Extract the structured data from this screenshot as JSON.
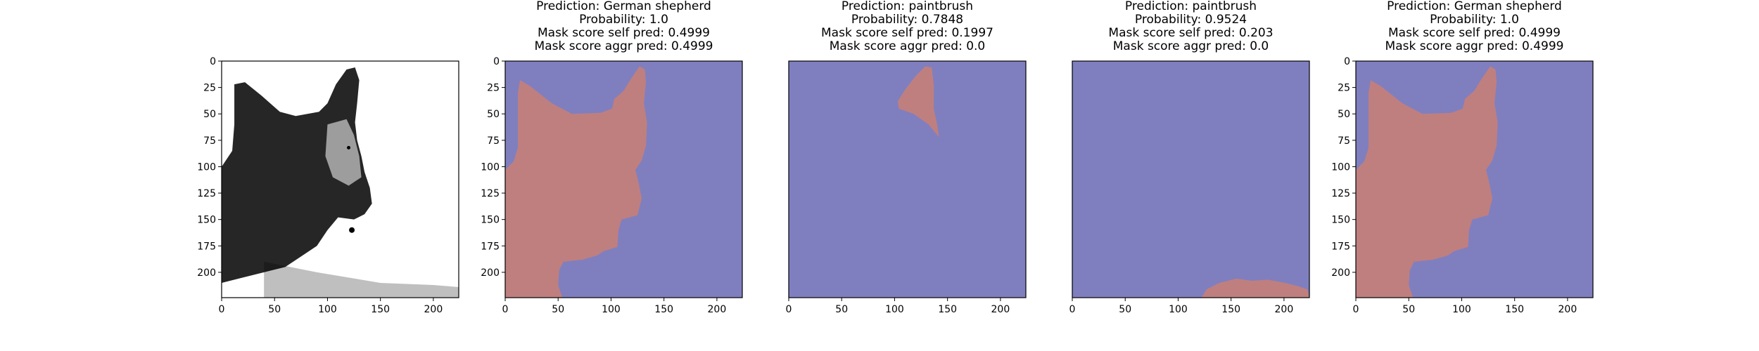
{
  "figure": {
    "axes_range": {
      "x": [
        0,
        224
      ],
      "y": [
        0,
        224
      ]
    },
    "xticks": [
      0,
      50,
      100,
      150,
      200
    ],
    "yticks": [
      0,
      25,
      50,
      75,
      100,
      125,
      150,
      175,
      200
    ],
    "colors": {
      "background": "#7f7fbf",
      "mask": "#bf7f7f",
      "spine": "#000000",
      "image_bg": "#ffffff",
      "image_fg": "#000000"
    }
  },
  "chart_data": [
    {
      "type": "image",
      "content": "grayscale-photo-dog",
      "title": [],
      "xlim": [
        0,
        224
      ],
      "ylim": [
        224,
        0
      ],
      "show_yticks": true
    },
    {
      "type": "heatmap",
      "title": [
        "Prediction: German shepherd",
        "Probability: 1.0",
        "Mask score self pred: 0.4999",
        "Mask score aggr pred: 0.4999"
      ],
      "prediction": "German shepherd",
      "probability": 1.0,
      "mask_score_self_pred": 0.4999,
      "mask_score_aggr_pred": 0.4999,
      "xlim": [
        0,
        224
      ],
      "ylim": [
        224,
        0
      ],
      "show_yticks": true,
      "mask_regions": [
        [
          [
            14,
            18
          ],
          [
            24,
            24
          ],
          [
            44,
            40
          ],
          [
            63,
            50
          ],
          [
            90,
            49
          ],
          [
            101,
            45
          ],
          [
            103,
            36
          ],
          [
            112,
            28
          ],
          [
            118,
            18
          ],
          [
            127,
            5
          ],
          [
            132,
            8
          ],
          [
            133,
            20
          ],
          [
            131,
            40
          ],
          [
            134,
            58
          ],
          [
            133,
            80
          ],
          [
            129,
            94
          ],
          [
            123,
            103
          ],
          [
            126,
            115
          ],
          [
            129,
            130
          ],
          [
            125,
            146
          ],
          [
            110,
            150
          ],
          [
            107,
            160
          ],
          [
            106,
            176
          ],
          [
            93,
            180
          ],
          [
            87,
            184
          ],
          [
            73,
            188
          ],
          [
            55,
            190
          ],
          [
            51,
            198
          ],
          [
            50,
            212
          ],
          [
            54,
            224
          ],
          [
            0,
            224
          ],
          [
            0,
            103
          ],
          [
            8,
            95
          ],
          [
            12,
            82
          ],
          [
            12,
            55
          ],
          [
            12,
            30
          ]
        ]
      ]
    },
    {
      "type": "heatmap",
      "title": [
        "Prediction: paintbrush",
        "Probability: 0.7848",
        "Mask score self pred: 0.1997",
        "Mask score aggr pred: 0.0"
      ],
      "prediction": "paintbrush",
      "probability": 0.7848,
      "mask_score_self_pred": 0.1997,
      "mask_score_aggr_pred": 0.0,
      "xlim": [
        0,
        224
      ],
      "ylim": [
        224,
        0
      ],
      "show_yticks": false,
      "mask_regions": [
        [
          [
            103,
            38
          ],
          [
            110,
            27
          ],
          [
            120,
            14
          ],
          [
            129,
            5
          ],
          [
            135,
            6
          ],
          [
            137,
            22
          ],
          [
            137,
            45
          ],
          [
            140,
            59
          ],
          [
            142,
            72
          ],
          [
            132,
            60
          ],
          [
            118,
            50
          ],
          [
            104,
            45
          ]
        ]
      ]
    },
    {
      "type": "heatmap",
      "title": [
        "Prediction: paintbrush",
        "Probability: 0.9524",
        "Mask score self pred: 0.203",
        "Mask score aggr pred: 0.0"
      ],
      "prediction": "paintbrush",
      "probability": 0.9524,
      "mask_score_self_pred": 0.203,
      "mask_score_aggr_pred": 0.0,
      "xlim": [
        0,
        224
      ],
      "ylim": [
        224,
        0
      ],
      "show_yticks": false,
      "mask_regions": [
        [
          [
            122,
            224
          ],
          [
            127,
            216
          ],
          [
            139,
            210
          ],
          [
            155,
            206
          ],
          [
            170,
            208
          ],
          [
            185,
            207
          ],
          [
            201,
            210
          ],
          [
            213,
            213
          ],
          [
            222,
            216
          ],
          [
            224,
            224
          ]
        ]
      ]
    },
    {
      "type": "heatmap",
      "title": [
        "Prediction: German shepherd",
        "Probability: 1.0",
        "Mask score self pred: 0.4999",
        "Mask score aggr pred: 0.4999"
      ],
      "prediction": "German shepherd",
      "probability": 1.0,
      "mask_score_self_pred": 0.4999,
      "mask_score_aggr_pred": 0.4999,
      "xlim": [
        0,
        224
      ],
      "ylim": [
        224,
        0
      ],
      "show_yticks": true,
      "mask_regions": [
        [
          [
            14,
            18
          ],
          [
            24,
            24
          ],
          [
            44,
            40
          ],
          [
            63,
            50
          ],
          [
            90,
            49
          ],
          [
            101,
            45
          ],
          [
            103,
            36
          ],
          [
            112,
            28
          ],
          [
            118,
            18
          ],
          [
            127,
            5
          ],
          [
            132,
            8
          ],
          [
            133,
            20
          ],
          [
            131,
            40
          ],
          [
            134,
            58
          ],
          [
            133,
            80
          ],
          [
            129,
            94
          ],
          [
            123,
            103
          ],
          [
            126,
            115
          ],
          [
            129,
            130
          ],
          [
            125,
            146
          ],
          [
            110,
            150
          ],
          [
            107,
            160
          ],
          [
            106,
            176
          ],
          [
            93,
            180
          ],
          [
            87,
            184
          ],
          [
            73,
            188
          ],
          [
            55,
            190
          ],
          [
            51,
            198
          ],
          [
            50,
            212
          ],
          [
            54,
            224
          ],
          [
            0,
            224
          ],
          [
            0,
            103
          ],
          [
            8,
            95
          ],
          [
            12,
            82
          ],
          [
            12,
            55
          ],
          [
            12,
            30
          ]
        ]
      ]
    }
  ]
}
